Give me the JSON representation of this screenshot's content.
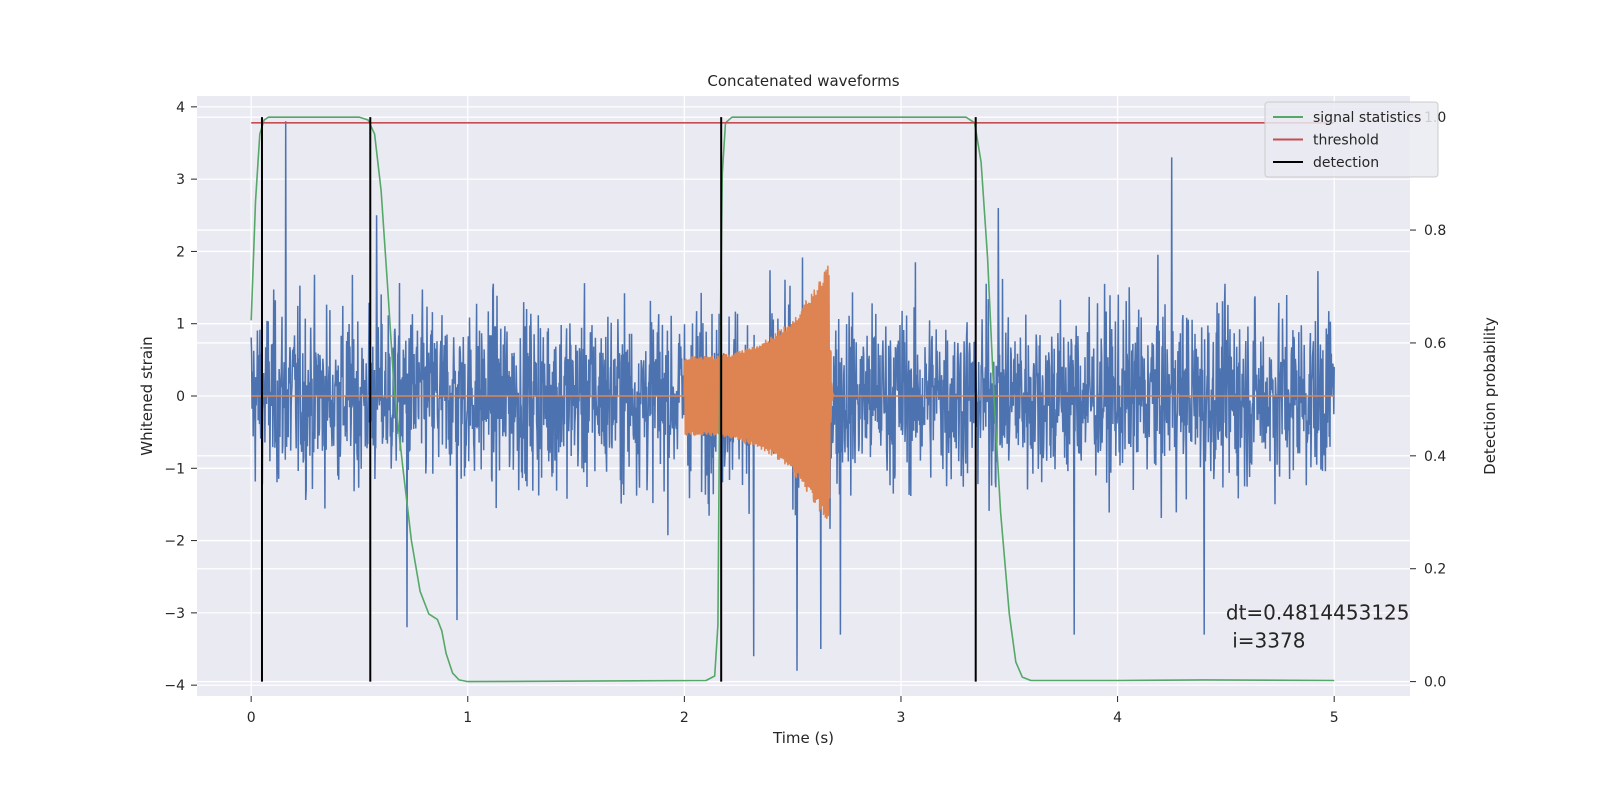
{
  "chart_data": {
    "type": "line",
    "title": "Concatenated waveforms",
    "xlabel": "Time (s)",
    "ylabel": "Whitened strain",
    "ylabel_right": "Detection probability",
    "xlim": [
      -0.25,
      5.35
    ],
    "ylim": [
      -4.15,
      4.15
    ],
    "ylim_right": [
      -0.0255,
      1.0375
    ],
    "x_ticks": [
      0,
      1,
      2,
      3,
      4,
      5
    ],
    "x_tick_labels": [
      "0",
      "1",
      "2",
      "3",
      "4",
      "5"
    ],
    "y_ticks": [
      -4,
      -3,
      -2,
      -1,
      0,
      1,
      2,
      3,
      4
    ],
    "y_tick_labels": [
      "−4",
      "−3",
      "−2",
      "−1",
      "0",
      "1",
      "2",
      "3",
      "4"
    ],
    "y_right_ticks": [
      0.0,
      0.2,
      0.4,
      0.6,
      0.8,
      1.0
    ],
    "y_right_tick_labels": [
      "0.0",
      "0.2",
      "0.4",
      "0.6",
      "0.8",
      "1.0"
    ],
    "grid": true,
    "legend_position": "top-right",
    "legend": [
      {
        "label": "signal statistics",
        "color": "#55a868"
      },
      {
        "label": "threshold",
        "color": "#c44e52"
      },
      {
        "label": "detection",
        "color": "#000000"
      }
    ],
    "series": [
      {
        "name": "",
        "axis": "left",
        "color": "#4c72b0",
        "description_kind": "noise",
        "x_range": [
          0,
          5
        ],
        "envelope": 2.2,
        "peaks": [
          [
            0.16,
            3.8
          ],
          [
            0.05,
            2.8
          ],
          [
            0.58,
            2.5
          ],
          [
            3.45,
            2.6
          ],
          [
            4.25,
            3.3
          ],
          [
            2.52,
            -3.8
          ],
          [
            2.72,
            -3.3
          ],
          [
            0.95,
            -3.1
          ],
          [
            0.72,
            -3.2
          ],
          [
            2.63,
            -3.5
          ],
          [
            3.8,
            -3.3
          ],
          [
            4.4,
            -3.3
          ],
          [
            2.32,
            -3.6
          ]
        ]
      },
      {
        "name": "",
        "axis": "left",
        "color": "#dd8452",
        "description_kind": "chirp",
        "x_range": [
          0,
          5
        ],
        "chirp_start": 2.0,
        "chirp_end": 2.67,
        "amp_start": 0.55,
        "amp_end": 1.85
      },
      {
        "name": "signal statistics",
        "axis": "right",
        "color": "#55a868",
        "x": [
          0.0,
          0.02,
          0.04,
          0.06,
          0.08,
          0.5,
          0.54,
          0.57,
          0.6,
          0.63,
          0.66,
          0.7,
          0.74,
          0.78,
          0.82,
          0.84,
          0.86,
          0.88,
          0.9,
          0.93,
          0.96,
          1.0,
          2.1,
          2.14,
          2.155,
          2.165,
          2.175,
          2.19,
          2.22,
          2.5,
          3.3,
          3.34,
          3.37,
          3.4,
          3.43,
          3.46,
          3.5,
          3.53,
          3.56,
          3.6,
          4.0,
          4.4,
          5.0
        ],
        "y": [
          0.64,
          0.85,
          0.97,
          0.995,
          1.0,
          1.0,
          0.995,
          0.97,
          0.87,
          0.7,
          0.52,
          0.38,
          0.25,
          0.16,
          0.12,
          0.115,
          0.11,
          0.09,
          0.05,
          0.015,
          0.003,
          0.0,
          0.002,
          0.01,
          0.1,
          0.6,
          0.9,
          0.99,
          1.0,
          1.0,
          1.0,
          0.99,
          0.92,
          0.75,
          0.5,
          0.3,
          0.12,
          0.035,
          0.008,
          0.002,
          0.002,
          0.003,
          0.002
        ]
      },
      {
        "name": "threshold",
        "axis": "right",
        "color": "#c44e52",
        "x": [
          0.0,
          5.0
        ],
        "y": [
          0.99,
          0.99
        ]
      }
    ],
    "detections": {
      "name": "detection",
      "color": "#000000",
      "x": [
        0.05,
        0.55,
        2.17,
        3.345
      ],
      "y_range": [
        0.0,
        1.0
      ]
    },
    "annotation": {
      "lines": [
        "dt=0.4814453125",
        " i=3378"
      ],
      "x": 4.5,
      "y": 0.11
    }
  }
}
